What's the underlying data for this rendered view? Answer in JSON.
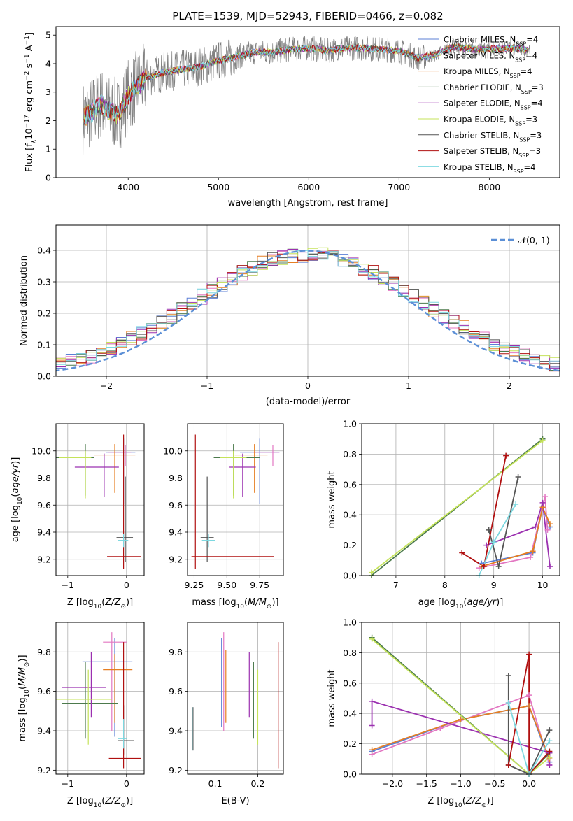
{
  "figure": {
    "title": "PLATE=1539, MJD=52943, FIBERID=0466, z=0.082"
  },
  "colors": {
    "Chabrier MILES": "#5b7fd6",
    "Salpeter MILES": "#e377c2",
    "Kroupa MILES": "#e67e22",
    "Chabrier ELODIE": "#4c7a4c",
    "Salpeter ELODIE": "#9b30b0",
    "Kroupa ELODIE": "#c5e35a",
    "Chabrier STELIB": "#555555",
    "Salpeter STELIB": "#b01010",
    "Kroupa STELIB": "#7dd8e0",
    "data": "#808080",
    "normal": "#5b8fd6"
  },
  "chart_data": [
    {
      "id": "spectrum",
      "type": "line",
      "xlabel": "wavelength [Angstrom, rest frame]",
      "ylabel": "Flux [f_λ10^-17 erg cm^-2 s^-1 A^-1]",
      "xlim": [
        3200,
        8780
      ],
      "ylim": [
        0,
        5.3
      ],
      "xticks": [
        4000,
        5000,
        6000,
        7000,
        8000
      ],
      "yticks": [
        0,
        1,
        2,
        3,
        4,
        5
      ],
      "legend_position": "right",
      "legend": [
        {
          "name": "Chabrier MILES",
          "nssp": "4"
        },
        {
          "name": "Salpeter MILES",
          "nssp": "4"
        },
        {
          "name": "Kroupa MILES",
          "nssp": "4"
        },
        {
          "name": "Chabrier ELODIE",
          "nssp": "3"
        },
        {
          "name": "Salpeter ELODIE",
          "nssp": "4"
        },
        {
          "name": "Kroupa ELODIE",
          "nssp": "3"
        },
        {
          "name": "Chabrier STELIB",
          "nssp": "3"
        },
        {
          "name": "Salpeter STELIB",
          "nssp": "3"
        },
        {
          "name": "Kroupa STELIB",
          "nssp": "4"
        }
      ],
      "continuum": {
        "x": [
          3500,
          3600,
          3700,
          3800,
          3900,
          4000,
          4100,
          4200,
          4400,
          4600,
          4800,
          5000,
          5200,
          5400,
          5600,
          5800,
          6000,
          6200,
          6400,
          6600,
          6800,
          7000,
          7200,
          7400,
          7600,
          7800,
          8000,
          8200,
          8400
        ],
        "y": [
          2.1,
          2.3,
          2.6,
          2.3,
          2.2,
          2.9,
          3.2,
          3.5,
          3.7,
          3.8,
          3.9,
          4.1,
          4.25,
          4.4,
          4.4,
          4.5,
          4.55,
          4.45,
          4.55,
          4.55,
          4.5,
          4.45,
          4.2,
          4.3,
          4.6,
          4.5,
          4.5,
          4.55,
          4.5
        ]
      }
    },
    {
      "id": "residuals",
      "type": "line",
      "xlabel": "(data-model)/error",
      "ylabel": "Normed distribution",
      "xlim": [
        -2.5,
        2.5
      ],
      "ylim": [
        0,
        0.48
      ],
      "xticks": [
        -2,
        -1,
        0,
        1,
        2
      ],
      "yticks": [
        0.0,
        0.1,
        0.2,
        0.3,
        0.4
      ],
      "grid": true,
      "legend_position": "top-right",
      "legend_label": "𝒩(0, 1)"
    },
    {
      "id": "age_vs_Z",
      "type": "scatter",
      "xlabel": "Z [log10(Z/Z⊙)]",
      "ylabel": "age  [log10(age/yr)]",
      "xlim": [
        -1.2,
        0.3
      ],
      "ylim": [
        9.08,
        10.2
      ],
      "xticks": [
        -1,
        0
      ],
      "yticks": [
        9.2,
        9.4,
        9.6,
        9.8,
        10.0
      ],
      "grid": true,
      "points": [
        {
          "series": "Chabrier MILES",
          "x": -0.05,
          "y": 9.99,
          "xerr": [
            0.3,
            0.2
          ],
          "yerr": [
            0.38,
            0.1
          ]
        },
        {
          "series": "Salpeter MILES",
          "x": -0.02,
          "y": 9.99,
          "xerr": [
            0.3,
            0.1
          ],
          "yerr": [
            0.1,
            0.05
          ]
        },
        {
          "series": "Kroupa MILES",
          "x": -0.2,
          "y": 9.97,
          "xerr": [
            0.35,
            0.35
          ],
          "yerr": [
            0.28,
            0.08
          ]
        },
        {
          "series": "Chabrier ELODIE",
          "x": -0.7,
          "y": 9.95,
          "xerr": [
            0.5,
            0.15
          ],
          "yerr": [
            0.28,
            0.1
          ]
        },
        {
          "series": "Salpeter ELODIE",
          "x": -0.38,
          "y": 9.88,
          "xerr": [
            0.5,
            0.25
          ],
          "yerr": [
            0.22,
            0.1
          ]
        },
        {
          "series": "Kroupa ELODIE",
          "x": -0.7,
          "y": 9.95,
          "xerr": [
            0.45,
            0.1
          ],
          "yerr": [
            0.3,
            0.05
          ]
        },
        {
          "series": "Chabrier STELIB",
          "x": -0.02,
          "y": 9.36,
          "xerr": [
            0.15,
            0.13
          ],
          "yerr": [
            0.18,
            0.45
          ]
        },
        {
          "series": "Salpeter STELIB",
          "x": -0.05,
          "y": 9.22,
          "xerr": [
            0.28,
            0.3
          ],
          "yerr": [
            0.09,
            0.9
          ]
        },
        {
          "series": "Kroupa STELIB",
          "x": -0.05,
          "y": 9.34,
          "xerr": [
            0.1,
            0.08
          ],
          "yerr": [
            0.05,
            0.05
          ]
        }
      ]
    },
    {
      "id": "age_vs_mass",
      "type": "scatter",
      "xlabel": "mass [log10(M/M⊙)]",
      "ylabel": "",
      "xlim": [
        9.2,
        9.93
      ],
      "ylim": [
        9.08,
        10.2
      ],
      "xticks": [
        9.25,
        9.5,
        9.75
      ],
      "yticks": [
        9.2,
        9.4,
        9.6,
        9.8,
        10.0
      ],
      "grid": true,
      "points": [
        {
          "series": "Chabrier MILES",
          "x": 9.75,
          "y": 9.99,
          "xerr": [
            0.15,
            0.15
          ],
          "yerr": [
            0.38,
            0.1
          ]
        },
        {
          "series": "Salpeter MILES",
          "x": 9.85,
          "y": 9.99,
          "xerr": [
            0.15,
            0.05
          ],
          "yerr": [
            0.1,
            0.05
          ]
        },
        {
          "series": "Kroupa MILES",
          "x": 9.71,
          "y": 9.97,
          "xerr": [
            0.15,
            0.1
          ],
          "yerr": [
            0.28,
            0.08
          ]
        },
        {
          "series": "Chabrier ELODIE",
          "x": 9.55,
          "y": 9.95,
          "xerr": [
            0.15,
            0.2
          ],
          "yerr": [
            0.28,
            0.1
          ]
        },
        {
          "series": "Salpeter ELODIE",
          "x": 9.62,
          "y": 9.88,
          "xerr": [
            0.1,
            0.1
          ],
          "yerr": [
            0.22,
            0.1
          ]
        },
        {
          "series": "Kroupa ELODIE",
          "x": 9.55,
          "y": 9.95,
          "xerr": [
            0.1,
            0.1
          ],
          "yerr": [
            0.3,
            0.05
          ]
        },
        {
          "series": "Chabrier STELIB",
          "x": 9.35,
          "y": 9.36,
          "xerr": [
            0.05,
            0.05
          ],
          "yerr": [
            0.18,
            0.45
          ]
        },
        {
          "series": "Salpeter STELIB",
          "x": 9.26,
          "y": 9.22,
          "xerr": [
            0.03,
            0.6
          ],
          "yerr": [
            0.09,
            0.9
          ]
        },
        {
          "series": "Kroupa STELIB",
          "x": 9.36,
          "y": 9.34,
          "xerr": [
            0.05,
            0.05
          ],
          "yerr": [
            0.05,
            0.05
          ]
        }
      ]
    },
    {
      "id": "weight_vs_age",
      "type": "line",
      "xlabel": "age  [log10(age/yr)]",
      "ylabel": "mass weight",
      "xlim": [
        6.3,
        10.35
      ],
      "ylim": [
        0,
        1.0
      ],
      "xticks": [
        7,
        8,
        9,
        10
      ],
      "yticks": [
        0.0,
        0.2,
        0.4,
        0.6,
        0.8,
        1.0
      ],
      "grid": true,
      "series": [
        {
          "name": "Chabrier MILES",
          "x": [
            8.75,
            9.8,
            10.0,
            10.15
          ],
          "y": [
            0.08,
            0.15,
            0.45,
            0.32
          ]
        },
        {
          "name": "Salpeter MILES",
          "x": [
            8.7,
            9.75,
            10.05,
            10.1
          ],
          "y": [
            0.05,
            0.12,
            0.52,
            0.3
          ]
        },
        {
          "name": "Kroupa MILES",
          "x": [
            8.75,
            9.8,
            10.0,
            10.15
          ],
          "y": [
            0.06,
            0.16,
            0.45,
            0.34
          ]
        },
        {
          "name": "Chabrier ELODIE",
          "x": [
            6.5,
            10.0
          ],
          "y": [
            0.0,
            0.9
          ]
        },
        {
          "name": "Salpeter ELODIE",
          "x": [
            8.85,
            9.85,
            10.0,
            10.15
          ],
          "y": [
            0.2,
            0.32,
            0.48,
            0.06
          ]
        },
        {
          "name": "Kroupa ELODIE",
          "x": [
            6.5,
            10.0
          ],
          "y": [
            0.02,
            0.89
          ]
        },
        {
          "name": "Chabrier STELIB",
          "x": [
            8.9,
            9.1,
            9.5
          ],
          "y": [
            0.3,
            0.06,
            0.65
          ]
        },
        {
          "name": "Salpeter STELIB",
          "x": [
            8.35,
            8.8,
            9.25
          ],
          "y": [
            0.15,
            0.06,
            0.79
          ]
        },
        {
          "name": "Kroupa STELIB",
          "x": [
            8.7,
            9.0,
            9.45
          ],
          "y": [
            0.0,
            0.22,
            0.47
          ]
        }
      ]
    },
    {
      "id": "mass_vs_Z",
      "type": "scatter",
      "xlabel": "Z [log10(Z/Z⊙)]",
      "ylabel": "mass [log10(M/M⊙)]",
      "xlim": [
        -1.2,
        0.3
      ],
      "ylim": [
        9.18,
        9.95
      ],
      "xticks": [
        -1,
        0
      ],
      "yticks": [
        9.2,
        9.4,
        9.6,
        9.8
      ],
      "grid": true,
      "points": [
        {
          "series": "Chabrier MILES",
          "x": -0.2,
          "y": 9.75,
          "xerr": [
            0.55,
            0.3
          ],
          "yerr": [
            0.38,
            0.12
          ]
        },
        {
          "series": "Salpeter MILES",
          "x": -0.25,
          "y": 9.85,
          "xerr": [
            0.15,
            0.25
          ],
          "yerr": [
            0.45,
            0.05
          ]
        },
        {
          "series": "Kroupa MILES",
          "x": -0.2,
          "y": 9.71,
          "xerr": [
            0.2,
            0.3
          ],
          "yerr": [
            0.27,
            0.08
          ]
        },
        {
          "series": "Chabrier ELODIE",
          "x": -0.7,
          "y": 9.54,
          "xerr": [
            0.4,
            0.55
          ],
          "yerr": [
            0.18,
            0.21
          ]
        },
        {
          "series": "Salpeter ELODIE",
          "x": -0.6,
          "y": 9.62,
          "xerr": [
            0.5,
            0.25
          ],
          "yerr": [
            0.15,
            0.18
          ]
        },
        {
          "series": "Kroupa ELODIE",
          "x": -0.65,
          "y": 9.56,
          "xerr": [
            0.55,
            0.4
          ],
          "yerr": [
            0.23,
            0.15
          ]
        },
        {
          "series": "Chabrier STELIB",
          "x": -0.05,
          "y": 9.35,
          "xerr": [
            0.1,
            0.18
          ],
          "yerr": [
            0.07,
            0.18
          ]
        },
        {
          "series": "Salpeter STELIB",
          "x": -0.05,
          "y": 9.26,
          "xerr": [
            0.25,
            0.3
          ],
          "yerr": [
            0.05,
            0.59
          ]
        },
        {
          "series": "Kroupa STELIB",
          "x": -0.05,
          "y": 9.36,
          "xerr": [
            0.1,
            0.05
          ],
          "yerr": [
            0.05,
            0.1
          ]
        }
      ]
    },
    {
      "id": "mass_vs_EBV",
      "type": "scatter",
      "xlabel": "E(B-V)",
      "ylabel": "",
      "xlim": [
        0.035,
        0.26
      ],
      "ylim": [
        9.18,
        9.95
      ],
      "xticks": [
        0.1,
        0.2
      ],
      "yticks": [
        9.2,
        9.4,
        9.6,
        9.8
      ],
      "grid": true,
      "points": [
        {
          "series": "Chabrier MILES",
          "x": 0.115,
          "y": 9.75,
          "xerr": [
            0,
            0
          ],
          "yerr": [
            0.33,
            0.12
          ]
        },
        {
          "series": "Salpeter MILES",
          "x": 0.12,
          "y": 9.85,
          "xerr": [
            0,
            0
          ],
          "yerr": [
            0.45,
            0.05
          ]
        },
        {
          "series": "Kroupa MILES",
          "x": 0.125,
          "y": 9.71,
          "xerr": [
            0,
            0
          ],
          "yerr": [
            0.27,
            0.1
          ]
        },
        {
          "series": "Chabrier ELODIE",
          "x": 0.19,
          "y": 9.54,
          "xerr": [
            0,
            0
          ],
          "yerr": [
            0.18,
            0.21
          ]
        },
        {
          "series": "Salpeter ELODIE",
          "x": 0.18,
          "y": 9.62,
          "xerr": [
            0,
            0
          ],
          "yerr": [
            0.15,
            0.18
          ]
        },
        {
          "series": "Kroupa ELODIE",
          "x": 0.2,
          "y": 9.56,
          "xerr": [
            0,
            0
          ],
          "yerr": [
            0.23,
            0.15
          ]
        },
        {
          "series": "Chabrier STELIB",
          "x": 0.048,
          "y": 9.4,
          "xerr": [
            0,
            0
          ],
          "yerr": [
            0.1,
            0.12
          ]
        },
        {
          "series": "Salpeter STELIB",
          "x": 0.248,
          "y": 9.4,
          "xerr": [
            0,
            0
          ],
          "yerr": [
            0.19,
            0.45
          ]
        },
        {
          "series": "Kroupa STELIB",
          "x": 0.046,
          "y": 9.4,
          "xerr": [
            0,
            0
          ],
          "yerr": [
            0.1,
            0.12
          ]
        }
      ]
    },
    {
      "id": "weight_vs_Z",
      "type": "line",
      "xlabel": "Z [log10(Z/Z⊙)]",
      "ylabel": "mass weight",
      "xlim": [
        -2.45,
        0.45
      ],
      "ylim": [
        0,
        1.0
      ],
      "xticks": [
        -2.0,
        -1.5,
        -1.0,
        -0.5,
        0.0
      ],
      "yticks": [
        0.0,
        0.2,
        0.4,
        0.6,
        0.8,
        1.0
      ],
      "grid": true,
      "series": [
        {
          "name": "Chabrier MILES",
          "x": [
            -2.3,
            -1.0,
            0.0,
            0.3
          ],
          "y": [
            0.15,
            0.36,
            0.45,
            0.08
          ]
        },
        {
          "name": "Salpeter MILES",
          "x": [
            -2.3,
            -1.3,
            -0.3,
            0.0,
            0.3
          ],
          "y": [
            0.13,
            0.3,
            0.47,
            0.52,
            0.06
          ]
        },
        {
          "name": "Kroupa MILES",
          "x": [
            -2.3,
            -1.0,
            0.0,
            0.3
          ],
          "y": [
            0.16,
            0.36,
            0.45,
            0.1
          ]
        },
        {
          "name": "Chabrier ELODIE",
          "x": [
            -2.3,
            0.0,
            0.3
          ],
          "y": [
            0.9,
            0.0,
            0.14
          ]
        },
        {
          "name": "Salpeter ELODIE",
          "x": [
            -2.3,
            -2.3,
            0.3,
            0.3
          ],
          "y": [
            0.32,
            0.48,
            0.14,
            0.06
          ]
        },
        {
          "name": "Kroupa ELODIE",
          "x": [
            -2.3,
            0.0,
            0.3
          ],
          "y": [
            0.89,
            0.0,
            0.11
          ]
        },
        {
          "name": "Chabrier STELIB",
          "x": [
            -0.3,
            -0.3,
            0.0,
            0.3
          ],
          "y": [
            0.65,
            0.06,
            0.0,
            0.29
          ]
        },
        {
          "name": "Salpeter STELIB",
          "x": [
            -0.3,
            0.0,
            0.0,
            0.3
          ],
          "y": [
            0.06,
            0.79,
            0.0,
            0.15
          ]
        },
        {
          "name": "Kroupa STELIB",
          "x": [
            -0.3,
            0.0,
            0.3
          ],
          "y": [
            0.47,
            0.0,
            0.22
          ]
        }
      ]
    }
  ]
}
